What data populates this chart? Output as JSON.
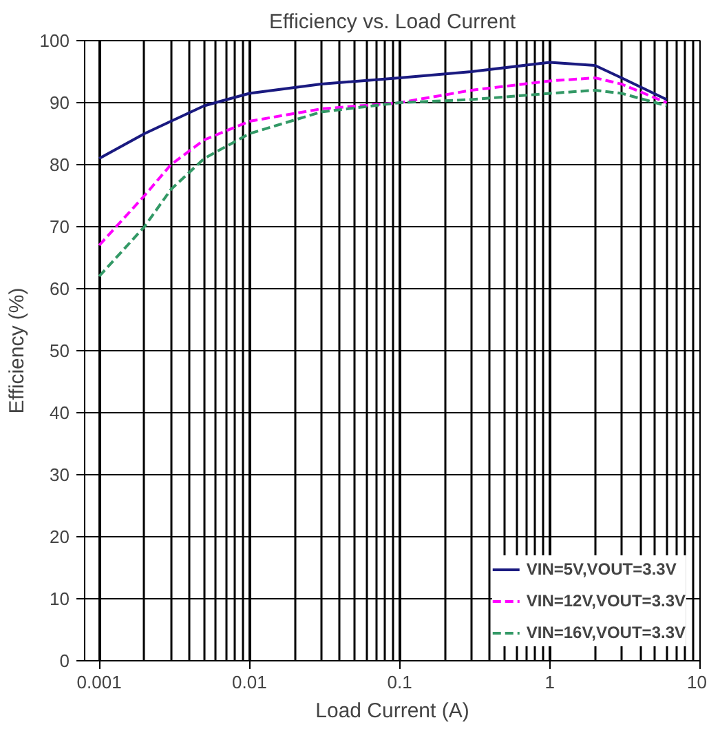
{
  "chart_data": {
    "type": "line",
    "title": "Efficiency vs. Load Current",
    "xlabel": "Load Current (A)",
    "ylabel": "Efficiency (%)",
    "log": "x",
    "xlim": [
      0.0008,
      10
    ],
    "xticks": [
      0.001,
      0.01,
      0.1,
      1,
      10
    ],
    "ylim": [
      0,
      100
    ],
    "yticks": [
      0,
      10,
      20,
      30,
      40,
      50,
      60,
      70,
      80,
      90,
      100
    ],
    "grid": true,
    "legend": "bottom right",
    "x": [
      0.001,
      0.002,
      0.003,
      0.005,
      0.01,
      0.03,
      0.1,
      0.3,
      1,
      2,
      3,
      6
    ],
    "series": [
      {
        "name": "VIN=5V,VOUT=3.3V",
        "color": "#1a1a80",
        "line_style": "solid",
        "values": [
          81,
          85,
          87,
          89.5,
          91.5,
          93,
          94,
          95,
          96.5,
          96,
          94,
          90.5
        ]
      },
      {
        "name": "VIN=12V,VOUT=3.3V",
        "color": "#ff00ff",
        "line_style": "dashed",
        "values": [
          67,
          75,
          80,
          84,
          87,
          89,
          90,
          92,
          93.5,
          94,
          93,
          90
        ]
      },
      {
        "name": "VIN=16V,VOUT=3.3V",
        "color": "#339966",
        "line_style": "dashed",
        "values": [
          62,
          70,
          76,
          81,
          85,
          88.5,
          90,
          90.5,
          91.5,
          92,
          91.5,
          89.5
        ]
      }
    ]
  }
}
